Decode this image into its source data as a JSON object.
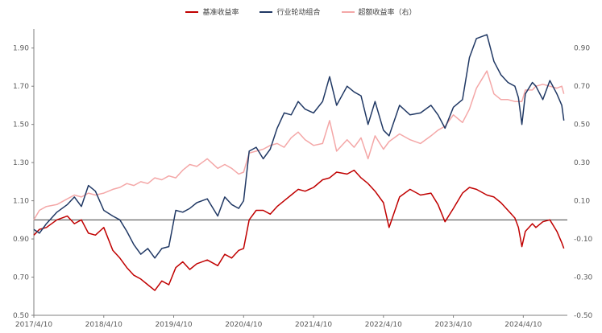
{
  "chart_data": {
    "type": "line",
    "title": "",
    "xlabel": "",
    "ylabel": "",
    "y_left": {
      "min": 0.5,
      "max": 2.0,
      "ticks": [
        0.5,
        0.7,
        0.9,
        1.1,
        1.3,
        1.5,
        1.7,
        1.9
      ]
    },
    "y_right": {
      "min": -0.5,
      "max": 1.0,
      "ticks": [
        -0.5,
        -0.3,
        -0.1,
        0.1,
        0.3,
        0.5,
        0.7,
        0.9
      ]
    },
    "y_left_tick_labels": [
      "0.50",
      "0.70",
      "0.90",
      "1.10",
      "1.30",
      "1.50",
      "1.70",
      "1.90"
    ],
    "y_right_tick_labels": [
      "-0.50",
      "-0.30",
      "-0.10",
      "0.10",
      "0.30",
      "0.50",
      "0.70",
      "0.90"
    ],
    "x_tick_labels": [
      "2017/4/10",
      "2018/4/10",
      "2019/4/10",
      "2020/4/10",
      "2021/4/10",
      "2022/4/10",
      "2023/4/10",
      "2024/4/10"
    ],
    "x_ticks": [
      2017.27,
      2018.27,
      2019.27,
      2020.27,
      2021.27,
      2022.27,
      2023.27,
      2024.27
    ],
    "x_range": [
      2017.27,
      2024.9
    ],
    "reference_line": {
      "axis": "left",
      "value": 1.0
    },
    "grid": false,
    "legend": "top",
    "series": [
      {
        "name": "基准收益率",
        "color": "#c00000",
        "axis": "left",
        "x": [
          2017.27,
          2017.35,
          2017.45,
          2017.6,
          2017.75,
          2017.85,
          2017.95,
          2018.05,
          2018.15,
          2018.27,
          2018.4,
          2018.5,
          2018.6,
          2018.7,
          2018.8,
          2018.9,
          2019.0,
          2019.1,
          2019.2,
          2019.3,
          2019.4,
          2019.5,
          2019.6,
          2019.75,
          2019.9,
          2020.0,
          2020.1,
          2020.2,
          2020.27,
          2020.35,
          2020.45,
          2020.55,
          2020.65,
          2020.75,
          2020.85,
          2020.95,
          2021.05,
          2021.15,
          2021.27,
          2021.4,
          2021.5,
          2021.6,
          2021.75,
          2021.85,
          2021.95,
          2022.05,
          2022.15,
          2022.27,
          2022.35,
          2022.5,
          2022.65,
          2022.8,
          2022.95,
          2023.05,
          2023.15,
          2023.27,
          2023.4,
          2023.5,
          2023.6,
          2023.75,
          2023.85,
          2023.95,
          2024.05,
          2024.15,
          2024.2,
          2024.25,
          2024.3,
          2024.4,
          2024.45,
          2024.55,
          2024.65,
          2024.75,
          2024.82,
          2024.85
        ],
        "y": [
          0.92,
          0.95,
          0.96,
          1.0,
          1.02,
          0.98,
          1.0,
          0.93,
          0.92,
          0.96,
          0.84,
          0.8,
          0.75,
          0.71,
          0.69,
          0.66,
          0.63,
          0.68,
          0.66,
          0.75,
          0.78,
          0.74,
          0.77,
          0.79,
          0.76,
          0.82,
          0.8,
          0.84,
          0.85,
          1.0,
          1.05,
          1.05,
          1.03,
          1.07,
          1.1,
          1.13,
          1.16,
          1.15,
          1.17,
          1.21,
          1.22,
          1.25,
          1.24,
          1.26,
          1.22,
          1.19,
          1.15,
          1.09,
          0.96,
          1.12,
          1.16,
          1.13,
          1.14,
          1.08,
          0.99,
          1.06,
          1.14,
          1.17,
          1.16,
          1.13,
          1.12,
          1.09,
          1.05,
          1.01,
          0.96,
          0.86,
          0.94,
          0.98,
          0.96,
          0.99,
          1.0,
          0.94,
          0.88,
          0.85
        ]
      },
      {
        "name": "行业轮动组合",
        "color": "#203864",
        "axis": "left",
        "x": [
          2017.27,
          2017.35,
          2017.45,
          2017.6,
          2017.75,
          2017.85,
          2017.95,
          2018.05,
          2018.15,
          2018.27,
          2018.4,
          2018.5,
          2018.6,
          2018.7,
          2018.8,
          2018.9,
          2019.0,
          2019.1,
          2019.2,
          2019.3,
          2019.4,
          2019.5,
          2019.6,
          2019.75,
          2019.9,
          2020.0,
          2020.1,
          2020.2,
          2020.27,
          2020.35,
          2020.45,
          2020.55,
          2020.65,
          2020.75,
          2020.85,
          2020.95,
          2021.05,
          2021.15,
          2021.27,
          2021.4,
          2021.5,
          2021.6,
          2021.75,
          2021.85,
          2021.95,
          2022.05,
          2022.15,
          2022.27,
          2022.35,
          2022.5,
          2022.65,
          2022.8,
          2022.95,
          2023.05,
          2023.15,
          2023.27,
          2023.4,
          2023.5,
          2023.6,
          2023.75,
          2023.85,
          2023.95,
          2024.05,
          2024.15,
          2024.2,
          2024.25,
          2024.3,
          2024.4,
          2024.45,
          2024.55,
          2024.65,
          2024.75,
          2024.82,
          2024.85
        ],
        "y": [
          0.95,
          0.93,
          0.98,
          1.04,
          1.08,
          1.12,
          1.07,
          1.18,
          1.15,
          1.05,
          1.02,
          1.0,
          0.94,
          0.87,
          0.82,
          0.85,
          0.8,
          0.85,
          0.86,
          1.05,
          1.04,
          1.06,
          1.09,
          1.11,
          1.02,
          1.12,
          1.08,
          1.06,
          1.1,
          1.36,
          1.38,
          1.32,
          1.37,
          1.48,
          1.56,
          1.55,
          1.62,
          1.58,
          1.56,
          1.62,
          1.75,
          1.6,
          1.7,
          1.67,
          1.65,
          1.5,
          1.62,
          1.47,
          1.44,
          1.6,
          1.55,
          1.56,
          1.6,
          1.55,
          1.48,
          1.59,
          1.63,
          1.85,
          1.95,
          1.97,
          1.83,
          1.76,
          1.72,
          1.7,
          1.64,
          1.5,
          1.66,
          1.72,
          1.7,
          1.63,
          1.73,
          1.66,
          1.6,
          1.52
        ]
      },
      {
        "name": "超额收益率（右）",
        "color": "#f4a7a7",
        "axis": "right",
        "x": [
          2017.27,
          2017.35,
          2017.45,
          2017.6,
          2017.75,
          2017.85,
          2017.95,
          2018.05,
          2018.15,
          2018.27,
          2018.4,
          2018.5,
          2018.6,
          2018.7,
          2018.8,
          2018.9,
          2019.0,
          2019.1,
          2019.2,
          2019.3,
          2019.4,
          2019.5,
          2019.6,
          2019.75,
          2019.9,
          2020.0,
          2020.1,
          2020.2,
          2020.27,
          2020.35,
          2020.45,
          2020.55,
          2020.65,
          2020.75,
          2020.85,
          2020.95,
          2021.05,
          2021.15,
          2021.27,
          2021.4,
          2021.5,
          2021.6,
          2021.75,
          2021.85,
          2021.95,
          2022.05,
          2022.15,
          2022.27,
          2022.35,
          2022.5,
          2022.65,
          2022.8,
          2022.95,
          2023.05,
          2023.15,
          2023.27,
          2023.4,
          2023.5,
          2023.6,
          2023.75,
          2023.85,
          2023.95,
          2024.05,
          2024.15,
          2024.2,
          2024.25,
          2024.3,
          2024.4,
          2024.45,
          2024.55,
          2024.65,
          2024.75,
          2024.82,
          2024.85
        ],
        "y": [
          0.0,
          0.05,
          0.07,
          0.08,
          0.11,
          0.13,
          0.12,
          0.14,
          0.13,
          0.14,
          0.16,
          0.17,
          0.19,
          0.18,
          0.2,
          0.19,
          0.22,
          0.21,
          0.23,
          0.22,
          0.26,
          0.29,
          0.28,
          0.32,
          0.27,
          0.29,
          0.27,
          0.24,
          0.25,
          0.35,
          0.36,
          0.37,
          0.39,
          0.4,
          0.38,
          0.43,
          0.46,
          0.42,
          0.39,
          0.4,
          0.52,
          0.36,
          0.42,
          0.38,
          0.43,
          0.32,
          0.44,
          0.37,
          0.41,
          0.45,
          0.42,
          0.4,
          0.44,
          0.47,
          0.49,
          0.55,
          0.51,
          0.58,
          0.69,
          0.78,
          0.66,
          0.63,
          0.63,
          0.62,
          0.62,
          0.62,
          0.68,
          0.68,
          0.7,
          0.71,
          0.7,
          0.69,
          0.7,
          0.66
        ]
      }
    ]
  }
}
